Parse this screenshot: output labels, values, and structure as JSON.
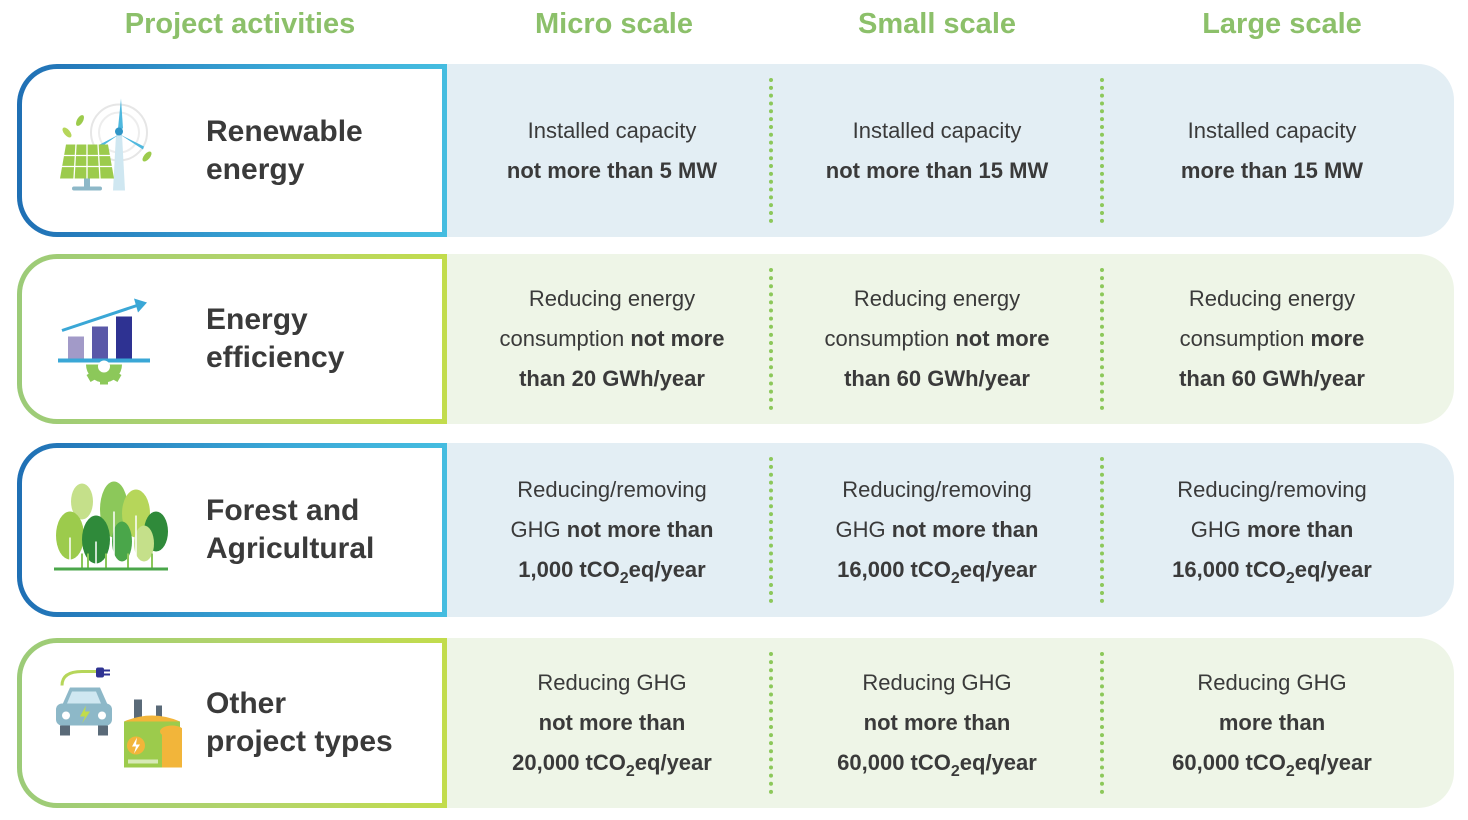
{
  "headers": {
    "activities": "Project activities",
    "micro": "Micro scale",
    "small": "Small scale",
    "large": "Large scale"
  },
  "rows": [
    {
      "title_line1": "Renewable",
      "title_line2": "energy",
      "icon": "solar-wind-icon",
      "micro": {
        "l1": "Installed capacity",
        "l2": "not more than 5 MW"
      },
      "small": {
        "l1": "Installed capacity",
        "l2": "not more than 15 MW"
      },
      "large": {
        "l1": "Installed capacity",
        "l2": "more than 15 MW"
      }
    },
    {
      "title_line1": "Energy",
      "title_line2": "efficiency",
      "icon": "bar-chart-gear-icon",
      "micro": {
        "l1": "Reducing energy",
        "l2a": "consumption ",
        "l2b": "not more",
        "l3": "than 20 GWh/year"
      },
      "small": {
        "l1": "Reducing energy",
        "l2a": "consumption ",
        "l2b": "not more",
        "l3": "than 60 GWh/year"
      },
      "large": {
        "l1": "Reducing energy",
        "l2a": "consumption ",
        "l2b": "more",
        "l3": "than 60 GWh/year"
      }
    },
    {
      "title_line1": "Forest and",
      "title_line2": "Agricultural",
      "icon": "trees-icon",
      "micro": {
        "l1": "Reducing/removing",
        "l2a": "GHG ",
        "l2b": "not more than",
        "l3a": "1,000 tCO",
        "l3sub": "2",
        "l3b": "eq/year"
      },
      "small": {
        "l1": "Reducing/removing",
        "l2a": "GHG ",
        "l2b": "not more than",
        "l3a": "16,000 tCO",
        "l3sub": "2",
        "l3b": "eq/year"
      },
      "large": {
        "l1": "Reducing/removing",
        "l2a": "GHG ",
        "l2b": "more than",
        "l3a": "16,000 tCO",
        "l3sub": "2",
        "l3b": "eq/year"
      }
    },
    {
      "title_line1": "Other",
      "title_line2": "project types",
      "icon": "ev-factory-icon",
      "micro": {
        "l1": "Reducing GHG",
        "l2": "not more than",
        "l3a": "20,000 tCO",
        "l3sub": "2",
        "l3b": "eq/year"
      },
      "small": {
        "l1": "Reducing GHG",
        "l2": "not more than",
        "l3a": "60,000 tCO",
        "l3sub": "2",
        "l3b": "eq/year"
      },
      "large": {
        "l1": "Reducing GHG",
        "l2": "more than",
        "l3a": "60,000 tCO",
        "l3sub": "2",
        "l3b": "eq/year"
      }
    }
  ],
  "colors": {
    "header_green": "#8cc06a",
    "blue_band": "#e3eef4",
    "green_band": "#eef5e7",
    "blue_border": "#1f6fb4",
    "green_border": "#9ccb78",
    "separator": "#8cc85a"
  }
}
